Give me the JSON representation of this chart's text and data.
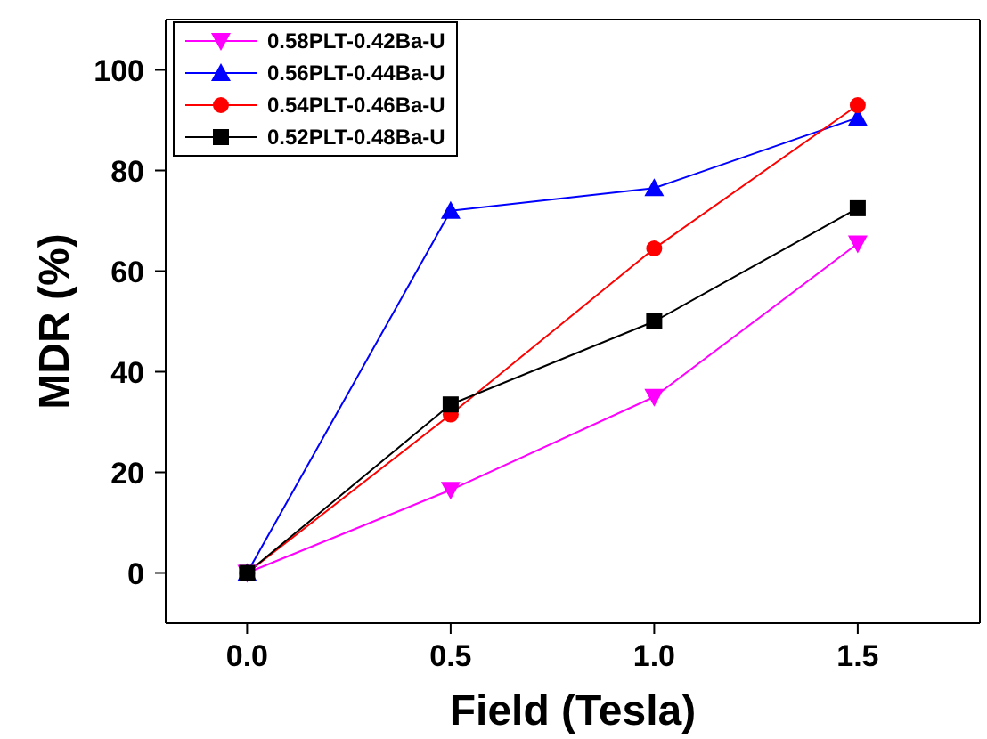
{
  "chart_data": {
    "type": "line",
    "xlabel": "Field (Tesla)",
    "ylabel": "MDR (%)",
    "x": [
      0.0,
      0.5,
      1.0,
      1.5
    ],
    "xlim": [
      -0.2,
      1.8
    ],
    "xticks": [
      {
        "value": 0,
        "label": "0.0"
      },
      {
        "value": 0.5,
        "label": "0.5"
      },
      {
        "value": 1,
        "label": "1.0"
      },
      {
        "value": 1.5,
        "label": "1.5"
      }
    ],
    "ylim": [
      -10,
      110
    ],
    "yticks": [
      0,
      20,
      40,
      60,
      80,
      100
    ],
    "legend": "top left",
    "line_style": "solid",
    "series": [
      {
        "name": "0.58PLT-0.42Ba-U",
        "color": "#ff00ff",
        "marker": "triangle-down",
        "values": [
          0,
          16.5,
          35,
          65.5
        ]
      },
      {
        "name": "0.56PLT-0.44Ba-U",
        "color": "#0000ff",
        "marker": "triangle",
        "values": [
          0,
          72,
          76.5,
          90.5
        ]
      },
      {
        "name": "0.54PLT-0.46Ba-U",
        "color": "#ff0000",
        "marker": "circle",
        "values": [
          0,
          31.5,
          64.5,
          93
        ]
      },
      {
        "name": "0.52PLT-0.48Ba-U",
        "color": "#000000",
        "marker": "square",
        "values": [
          0,
          33.5,
          50,
          72.5
        ]
      }
    ]
  }
}
